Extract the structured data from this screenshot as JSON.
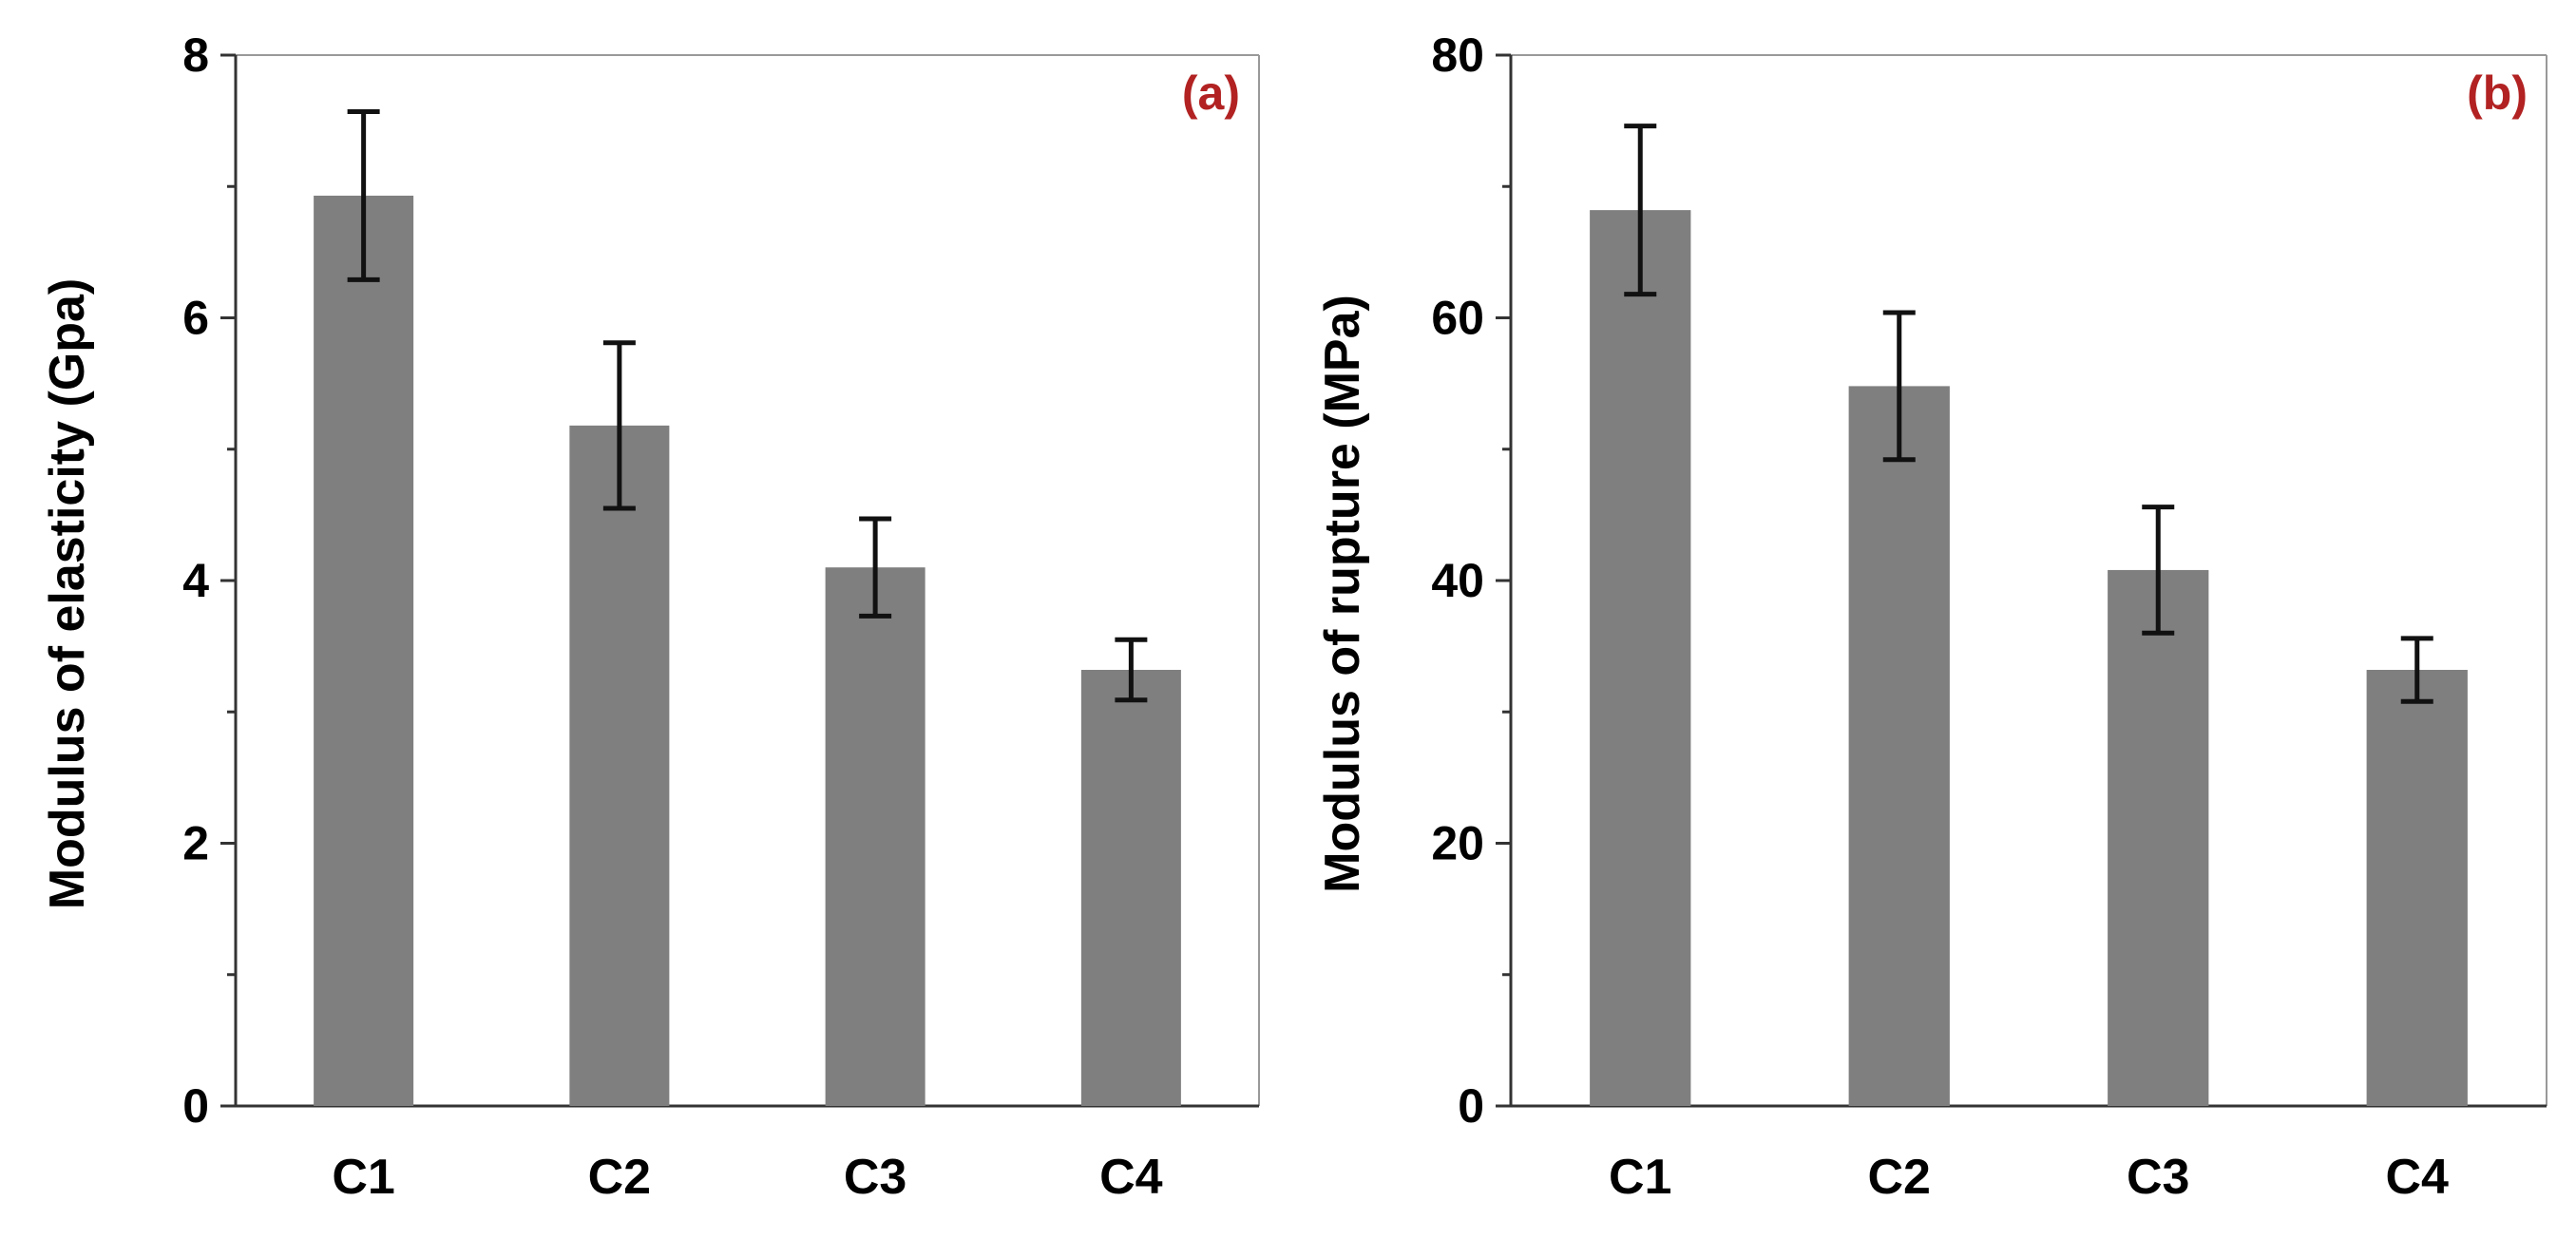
{
  "colors": {
    "bar": "#7f7f7f",
    "panel_label": "#b22222"
  },
  "chart_data": [
    {
      "type": "bar",
      "panel_label": "(a)",
      "title": "",
      "xlabel": "",
      "ylabel": "Modulus of elasticity (Gpa)",
      "ylim": [
        0,
        8
      ],
      "yticks": [
        0,
        2,
        4,
        6,
        8
      ],
      "ytick_labels": [
        "0",
        "2",
        "4",
        "6",
        "8"
      ],
      "categories": [
        "C1",
        "C2",
        "C3",
        "C4"
      ],
      "values": [
        6.93,
        5.18,
        4.1,
        3.32
      ],
      "errors": [
        0.64,
        0.63,
        0.37,
        0.23
      ],
      "grid": false
    },
    {
      "type": "bar",
      "panel_label": "(b)",
      "title": "",
      "xlabel": "",
      "ylabel": "Modulus of rupture (MPa)",
      "ylim": [
        0,
        80
      ],
      "yticks": [
        0,
        20,
        40,
        60,
        80
      ],
      "ytick_labels": [
        "0",
        "20",
        "40",
        "60",
        "80"
      ],
      "categories": [
        "C1",
        "C2",
        "C3",
        "C4"
      ],
      "values": [
        68.2,
        54.8,
        40.8,
        33.2
      ],
      "errors": [
        6.4,
        5.6,
        4.8,
        2.4
      ],
      "grid": false
    }
  ]
}
